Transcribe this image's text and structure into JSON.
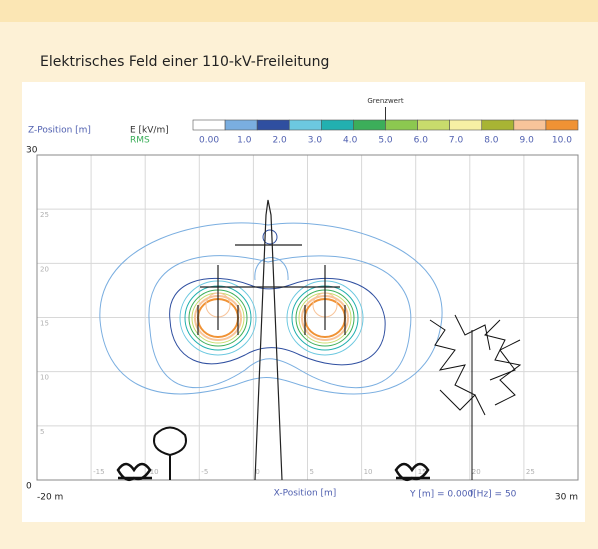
{
  "chart_data": {
    "type": "contour",
    "title": "Elektrisches Feld einer 110-kV-Freileitung",
    "y_label": "Z-Position [m]",
    "x_label": "X-Position [m]",
    "colorbar_label": "E [kV/m]",
    "colorbar_sublabel": "RMS",
    "limit_label": "Grenzwert",
    "params": [
      "Y [m] = 0.000",
      "f[Hz] = 50"
    ],
    "xlim": [
      -20,
      30
    ],
    "ylim": [
      0,
      30
    ],
    "xlim_labels": [
      "-20 m",
      "30 m"
    ],
    "ylim_labels": [
      "0",
      "30"
    ],
    "xticks": [
      -15,
      -10,
      -5,
      0,
      5,
      10,
      15,
      20,
      25
    ],
    "yticks": [
      5,
      10,
      15,
      20,
      25
    ],
    "grid": true,
    "colorbar": {
      "ticks": [
        {
          "value": 0,
          "label": "0.00"
        },
        {
          "value": 1,
          "label": "1.0"
        },
        {
          "value": 2,
          "label": "2.0"
        },
        {
          "value": 3,
          "label": "3.0"
        },
        {
          "value": 4,
          "label": "4.0"
        },
        {
          "value": 5,
          "label": "5.0"
        },
        {
          "value": 6,
          "label": "6.0"
        },
        {
          "value": 7,
          "label": "7.0"
        },
        {
          "value": 8,
          "label": "8.0"
        },
        {
          "value": 9,
          "label": "9.0"
        },
        {
          "value": 10,
          "label": "10.0"
        }
      ],
      "colors": [
        "#ffffff",
        "#7aaee0",
        "#2f4fa0",
        "#6cc8e0",
        "#22b0b0",
        "#3cae5a",
        "#8cc850",
        "#c8dc6c",
        "#f6f0a4",
        "#a8b434",
        "#f8c49a",
        "#f09234"
      ],
      "limit": 5
    }
  }
}
